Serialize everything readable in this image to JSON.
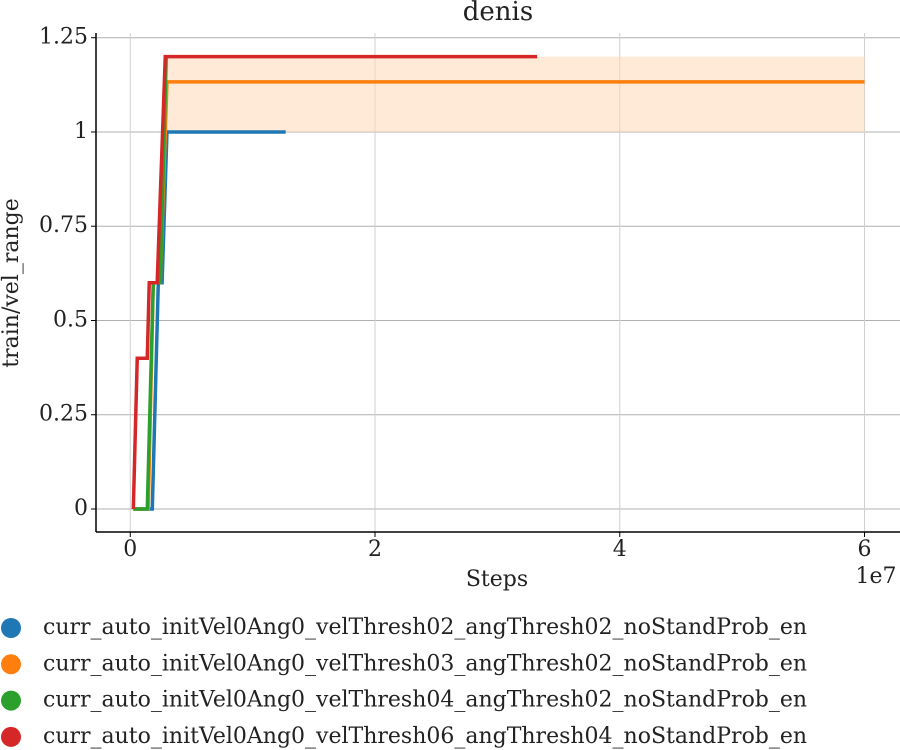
{
  "chart_data": {
    "type": "line",
    "title": "denis",
    "xlabel": "Steps",
    "ylabel": "train/vel_range",
    "x_offset_label": "1e7",
    "xlim": [
      -2800000,
      62900000
    ],
    "xticks": [
      {
        "value": 0,
        "label": "0"
      },
      {
        "value": 20000000,
        "label": "2"
      },
      {
        "value": 40000000,
        "label": "4"
      },
      {
        "value": 60000000,
        "label": "6"
      }
    ],
    "ylim": [
      -0.061,
      1.2625
    ],
    "yticks": [
      0,
      0.25,
      0.5,
      0.75,
      1,
      1.25
    ],
    "grid": true,
    "band": {
      "color": "#fdd9b5",
      "x": [
        2860000,
        60000000
      ],
      "lower": [
        1,
        1
      ],
      "upper": [
        1.2,
        1.2
      ]
    },
    "series": [
      {
        "name": "curr_auto_initVel0Ang0_velThresh02_angThresh02_noStandProb_en",
        "color": "#1f77b4",
        "x": [
          250000,
          1800000,
          2290000,
          2600000,
          3000000,
          12700000
        ],
        "values": [
          0,
          0,
          0.6,
          0.6,
          1,
          1
        ]
      },
      {
        "name": "curr_auto_initVel0Ang0_velThresh03_angThresh02_noStandProb_en",
        "color": "#ff7f0e",
        "x": [
          250000,
          1470000,
          1880000,
          2450000,
          3000000,
          60000000
        ],
        "values": [
          0,
          0,
          0.6,
          0.6,
          1.133,
          1.133
        ]
      },
      {
        "name": "curr_auto_initVel0Ang0_velThresh04_angThresh02_noStandProb_en",
        "color": "#2ca02c",
        "x": [
          250000,
          1390000,
          1880000,
          2450000,
          2940000
        ],
        "values": [
          0,
          0,
          0.6,
          0.6,
          1.2
        ]
      },
      {
        "name": "curr_auto_initVel0Ang0_velThresh06_angThresh04_noStandProb_en",
        "color": "#d62728",
        "x": [
          250000,
          570000,
          1390000,
          1550000,
          2200000,
          2860000,
          33250000
        ],
        "values": [
          0,
          0.4,
          0.4,
          0.6,
          0.6,
          1.2,
          1.2
        ]
      }
    ]
  }
}
